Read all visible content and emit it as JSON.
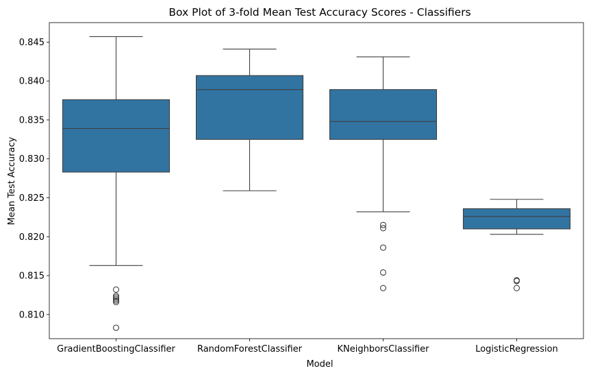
{
  "chart_data": {
    "type": "box",
    "title": "Box Plot of 3-fold Mean Test Accuracy Scores - Classifiers",
    "xlabel": "Model",
    "ylabel": "Mean Test Accuracy",
    "ylim": [
      0.8069,
      0.8475
    ],
    "yticks": [
      "0.810",
      "0.815",
      "0.820",
      "0.825",
      "0.830",
      "0.835",
      "0.840",
      "0.845"
    ],
    "ytick_values": [
      0.81,
      0.815,
      0.82,
      0.825,
      0.83,
      0.835,
      0.84,
      0.845
    ],
    "box_color": "#3274a1",
    "line_color": "#3f3f3f",
    "grid": false,
    "categories": [
      "GradientBoostingClassifier",
      "RandomForestClassifier",
      "KNeighborsClassifier",
      "LogisticRegression"
    ],
    "boxes": [
      {
        "whisker_low": 0.8163,
        "q1": 0.8283,
        "median": 0.8339,
        "q3": 0.8376,
        "whisker_high": 0.8457,
        "outliers": [
          0.8132,
          0.8124,
          0.8122,
          0.812,
          0.8118,
          0.8116,
          0.8083
        ]
      },
      {
        "whisker_low": 0.8259,
        "q1": 0.8325,
        "median": 0.8389,
        "q3": 0.8407,
        "whisker_high": 0.8441,
        "outliers": []
      },
      {
        "whisker_low": 0.8232,
        "q1": 0.8325,
        "median": 0.8348,
        "q3": 0.8389,
        "whisker_high": 0.8431,
        "outliers": [
          0.8215,
          0.8211,
          0.8186,
          0.8154,
          0.8134
        ]
      },
      {
        "whisker_low": 0.8203,
        "q1": 0.821,
        "median": 0.8226,
        "q3": 0.8236,
        "whisker_high": 0.8248,
        "outliers": [
          0.8144,
          0.8143,
          0.8134
        ]
      }
    ]
  }
}
